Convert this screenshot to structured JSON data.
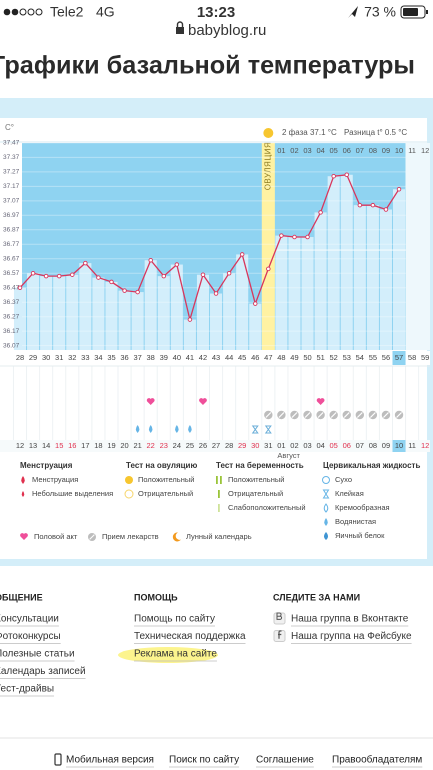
{
  "status": {
    "carrier": "Tele2",
    "network": "4G",
    "time": "13:23",
    "battery": "73 %"
  },
  "address": "babyblog.ru",
  "title": "Графики базальной температуры",
  "chart": {
    "type": "line",
    "unit": "C°",
    "phase_label": "2 фаза 37.1 °C",
    "diff_label": "Разница t° 0.5 °C",
    "ovulation_label": "Овуляция",
    "days": [
      "28",
      "29",
      "30",
      "31",
      "32",
      "33",
      "34",
      "35",
      "36",
      "37",
      "38",
      "39",
      "40",
      "41",
      "42",
      "43",
      "44",
      "45",
      "46",
      "47",
      "48",
      "49",
      "50",
      "51",
      "52",
      "53",
      "54",
      "55",
      "56",
      "57",
      "58",
      "59"
    ],
    "phase_days": [
      null,
      null,
      null,
      null,
      null,
      null,
      null,
      null,
      null,
      null,
      null,
      null,
      null,
      null,
      null,
      null,
      null,
      null,
      null,
      null,
      "01",
      "02",
      "03",
      "04",
      "05",
      "06",
      "07",
      "08",
      "09",
      "10",
      "11",
      "12"
    ],
    "dates": [
      "12",
      "13",
      "14",
      "15",
      "16",
      "17",
      "18",
      "19",
      "20",
      "21",
      "22",
      "23",
      "24",
      "25",
      "26",
      "27",
      "28",
      "29",
      "30",
      "31",
      "01",
      "02",
      "03",
      "04",
      "05",
      "06",
      "07",
      "08",
      "09",
      "10",
      "11",
      "12"
    ],
    "weekend": [
      false,
      false,
      false,
      true,
      true,
      false,
      false,
      false,
      false,
      false,
      true,
      true,
      false,
      false,
      false,
      false,
      false,
      true,
      true,
      false,
      false,
      false,
      false,
      false,
      true,
      true,
      false,
      false,
      false,
      false,
      false,
      true
    ],
    "month_label": "Август",
    "values": [
      36.47,
      36.57,
      36.55,
      36.55,
      36.56,
      36.64,
      36.54,
      36.51,
      36.45,
      36.44,
      36.66,
      36.55,
      36.63,
      36.25,
      36.56,
      36.43,
      36.57,
      36.7,
      36.36,
      36.6,
      36.83,
      36.82,
      36.82,
      36.99,
      37.24,
      37.25,
      37.04,
      37.04,
      37.01,
      37.15,
      null,
      null
    ],
    "cover_line": 36.73,
    "color": "#d8365c",
    "ylim": [
      36.04,
      37.49
    ],
    "yticks": [
      37.47,
      37.37,
      37.27,
      37.17,
      37.07,
      36.97,
      36.87,
      36.77,
      36.67,
      36.57,
      36.47,
      36.37,
      36.27,
      36.17,
      36.07
    ]
  },
  "legend": {
    "groups": [
      {
        "title": "Менструация",
        "items": [
          "Менструация",
          "Небольшие выделения"
        ]
      },
      {
        "title": "Тест на овуляцию",
        "items": [
          "Положительный",
          "Отрицательный"
        ]
      },
      {
        "title": "Тест на беременность",
        "items": [
          "Положительный",
          "Отрицательный",
          "Слабоположительный"
        ]
      },
      {
        "title": "Цервикальная жидкость",
        "items": [
          "Сухо",
          "Клейкая",
          "Кремообразная",
          "Водянистая",
          "Яичный белок"
        ]
      }
    ],
    "extras": [
      "Половой акт",
      "Прием лекарств",
      "Лунный календарь"
    ]
  },
  "footer": {
    "columns": [
      {
        "title": "ОБЩЕНИЕ",
        "links": [
          "Консультации",
          "Фотоконкурсы",
          "Полезные статьи",
          "Календарь записей",
          "Тест-драйвы"
        ]
      },
      {
        "title": "ПОМОЩЬ",
        "links": [
          "Помощь по сайту",
          "Техническая поддержка",
          "Реклама на сайте"
        ]
      },
      {
        "title": "СЛЕДИТЕ ЗА НАМИ",
        "links": [
          "Наша группа в Вконтакте",
          "Наша группа на Фейсбуке"
        ]
      }
    ],
    "bottom": [
      "Мобильная версия",
      "Поиск по сайту",
      "Соглашение",
      "Правообладателям"
    ]
  }
}
